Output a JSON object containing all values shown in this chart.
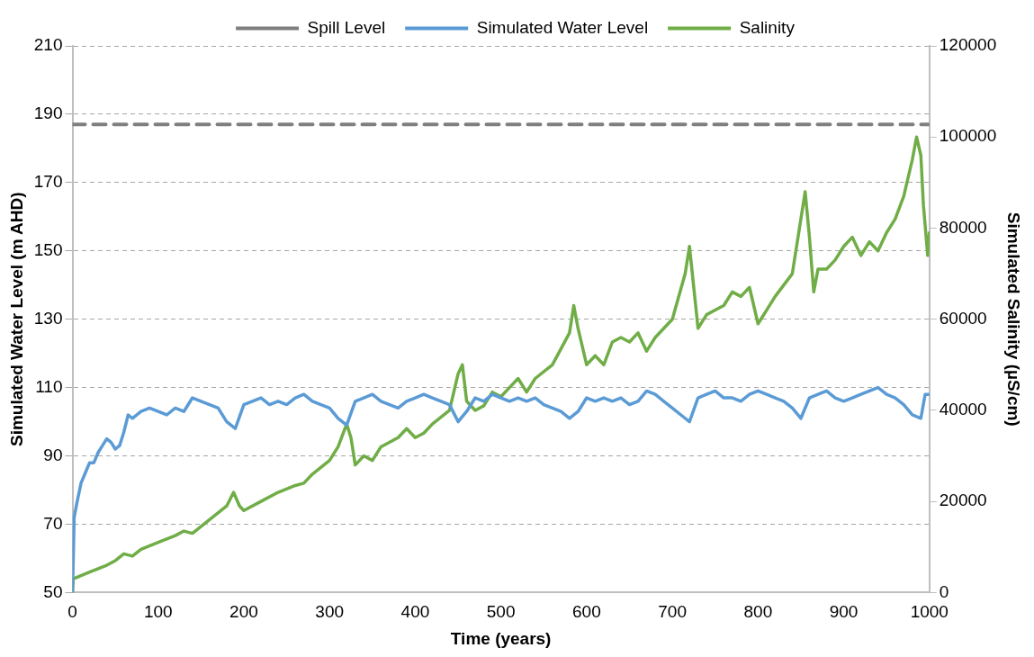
{
  "chart_data": {
    "type": "line",
    "xlabel": "Time (years)",
    "ylabel": "Simulated Water Level (m AHD)",
    "y2label": "Simulated Salinity (µS/cm)",
    "xlim": [
      0,
      1000
    ],
    "xticks": [
      0,
      100,
      200,
      300,
      400,
      500,
      600,
      700,
      800,
      900,
      1000
    ],
    "ylim": [
      50,
      210
    ],
    "yticks": [
      50,
      70,
      90,
      110,
      130,
      150,
      170,
      190,
      210
    ],
    "y2lim": [
      0,
      120000
    ],
    "y2ticks": [
      0,
      20000,
      40000,
      60000,
      80000,
      100000,
      120000
    ],
    "grid": "y",
    "legend": "top",
    "marker": "none",
    "series": [
      {
        "name": "Spill Level",
        "color": "#7f7f7f",
        "line_style": "dashed",
        "x": [
          0,
          1000
        ],
        "values": [
          187,
          187
        ]
      },
      {
        "name": "Simulated Water Level",
        "color": "#5b9bd5",
        "line_style": "solid",
        "x": [
          0,
          1,
          2,
          5,
          10,
          15,
          20,
          25,
          30,
          35,
          40,
          45,
          50,
          55,
          60,
          65,
          70,
          80,
          90,
          100,
          110,
          120,
          130,
          140,
          150,
          160,
          170,
          180,
          190,
          200,
          210,
          220,
          230,
          240,
          250,
          260,
          270,
          280,
          290,
          300,
          310,
          320,
          330,
          340,
          350,
          360,
          370,
          380,
          390,
          400,
          410,
          420,
          430,
          440,
          450,
          460,
          470,
          480,
          490,
          500,
          510,
          520,
          530,
          540,
          550,
          560,
          570,
          580,
          590,
          600,
          610,
          620,
          630,
          640,
          650,
          660,
          670,
          680,
          690,
          700,
          710,
          720,
          730,
          740,
          750,
          760,
          770,
          780,
          790,
          800,
          810,
          820,
          830,
          840,
          850,
          860,
          870,
          880,
          890,
          900,
          910,
          920,
          930,
          940,
          950,
          960,
          970,
          980,
          990,
          995,
          1000
        ],
        "values": [
          50,
          60,
          72,
          76,
          82,
          85,
          88,
          88,
          91,
          93,
          95,
          94,
          92,
          93,
          97,
          102,
          101,
          103,
          104,
          103,
          102,
          104,
          103,
          107,
          106,
          105,
          104,
          100,
          98,
          105,
          106,
          107,
          105,
          106,
          105,
          107,
          108,
          106,
          105,
          104,
          101,
          99,
          106,
          107,
          108,
          106,
          105,
          104,
          106,
          107,
          108,
          107,
          106,
          105,
          100,
          103,
          107,
          106,
          108,
          107,
          106,
          107,
          106,
          107,
          105,
          104,
          103,
          101,
          103,
          107,
          106,
          107,
          106,
          107,
          105,
          106,
          109,
          108,
          106,
          104,
          102,
          100,
          107,
          108,
          109,
          107,
          107,
          106,
          108,
          109,
          108,
          107,
          106,
          104,
          101,
          107,
          108,
          109,
          107,
          106,
          107,
          108,
          109,
          110,
          108,
          107,
          105,
          102,
          101,
          108,
          108
        ]
      },
      {
        "name": "Salinity",
        "color": "#70ad47",
        "line_style": "solid",
        "axis": "y2",
        "x": [
          0,
          1,
          20,
          40,
          50,
          60,
          70,
          80,
          100,
          120,
          130,
          140,
          160,
          180,
          188,
          195,
          200,
          220,
          240,
          260,
          270,
          280,
          300,
          310,
          320,
          325,
          330,
          340,
          350,
          360,
          380,
          390,
          400,
          410,
          420,
          440,
          450,
          455,
          460,
          470,
          480,
          490,
          500,
          510,
          520,
          530,
          540,
          560,
          580,
          585,
          590,
          600,
          610,
          620,
          630,
          640,
          650,
          660,
          670,
          680,
          700,
          715,
          720,
          725,
          730,
          740,
          750,
          760,
          770,
          780,
          790,
          800,
          810,
          820,
          840,
          850,
          855,
          860,
          865,
          870,
          880,
          890,
          900,
          910,
          920,
          930,
          940,
          950,
          960,
          970,
          980,
          985,
          990,
          993,
          998,
          1000
        ],
        "values": [
          0,
          3000,
          4500,
          6000,
          7000,
          8500,
          8000,
          9500,
          11000,
          12500,
          13500,
          13000,
          16000,
          19000,
          22000,
          19000,
          18000,
          20000,
          22000,
          23500,
          24000,
          26000,
          29000,
          32000,
          37000,
          34000,
          28000,
          30000,
          29000,
          32000,
          34000,
          36000,
          34000,
          35000,
          37000,
          40000,
          48000,
          50000,
          42000,
          40000,
          41000,
          44000,
          43000,
          45000,
          47000,
          44000,
          47000,
          50000,
          57000,
          63000,
          58000,
          50000,
          52000,
          50000,
          55000,
          56000,
          55000,
          57000,
          53000,
          56000,
          60000,
          70000,
          76000,
          67000,
          58000,
          61000,
          62000,
          63000,
          66000,
          65000,
          67000,
          59000,
          62000,
          65000,
          70000,
          82000,
          88000,
          78000,
          66000,
          71000,
          71000,
          73000,
          76000,
          78000,
          74000,
          77000,
          75000,
          79000,
          82000,
          87000,
          95000,
          100000,
          96000,
          85000,
          74000,
          79000
        ]
      }
    ]
  }
}
